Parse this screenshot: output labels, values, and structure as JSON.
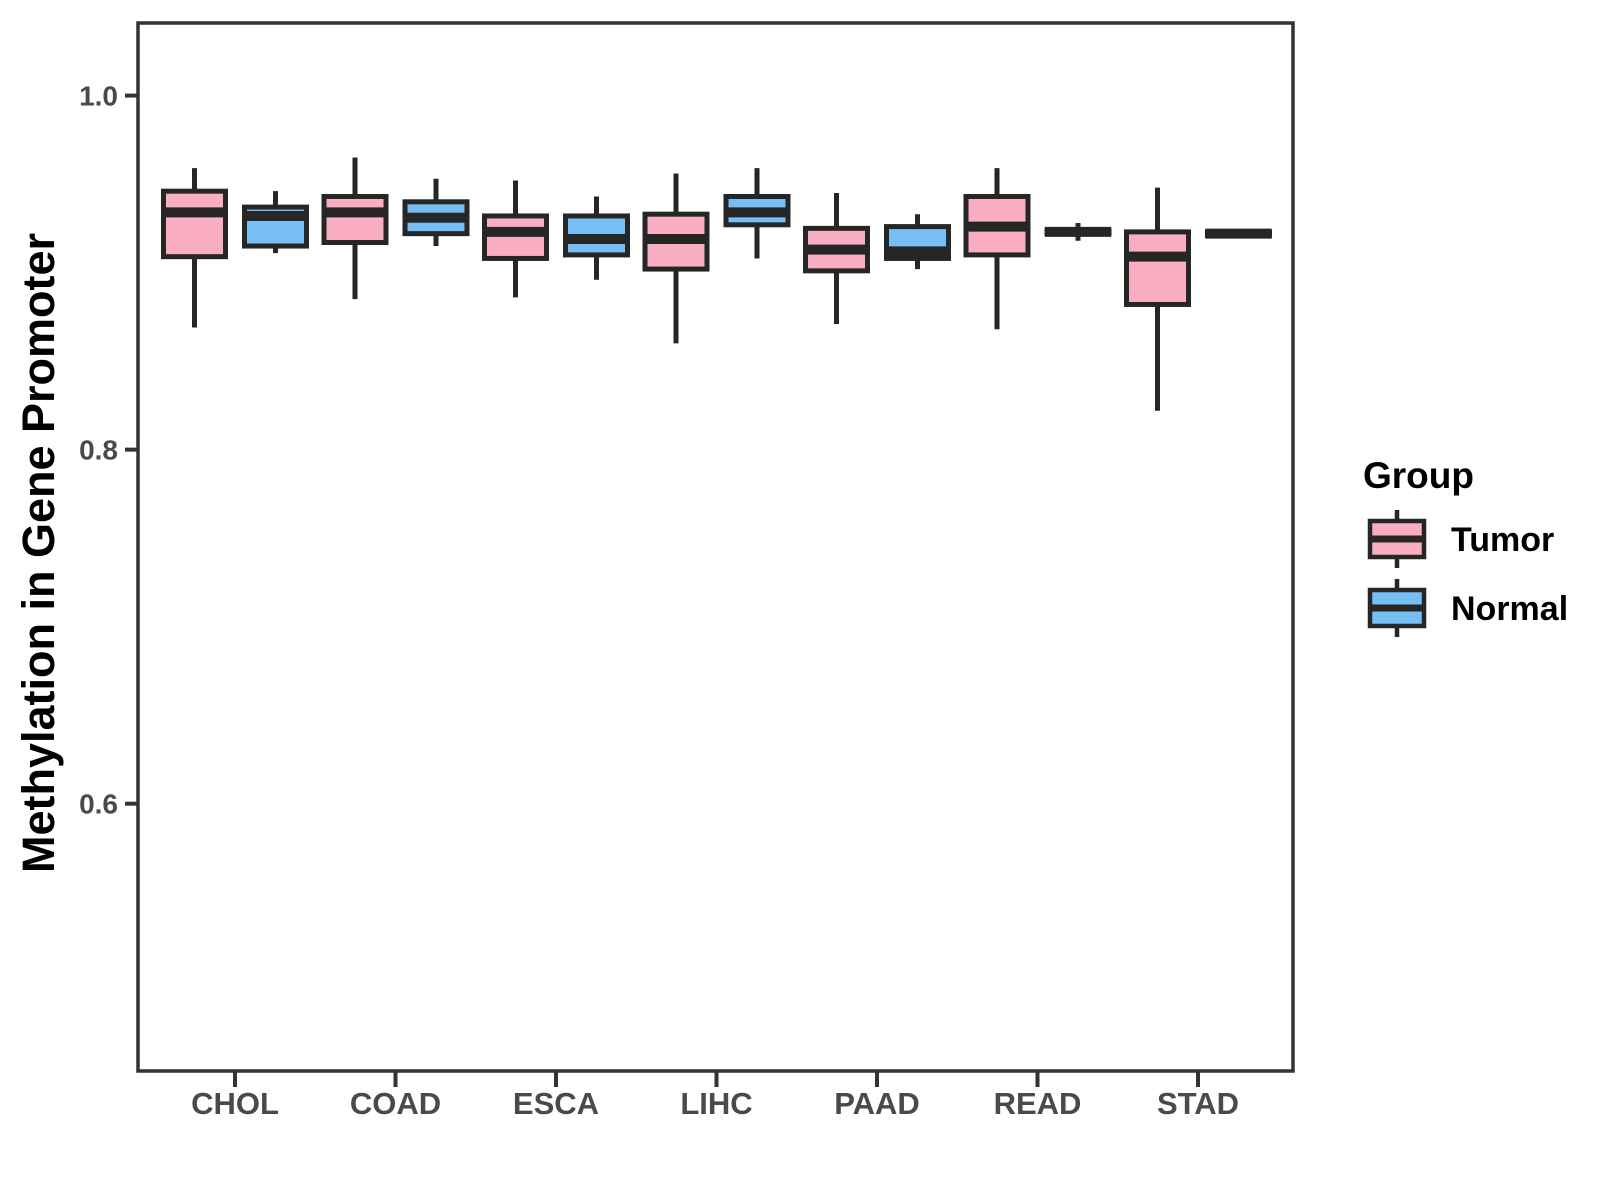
{
  "chart_data": {
    "type": "boxplot",
    "title": "",
    "categories": [
      "CHOL",
      "COAD",
      "ESCA",
      "LIHC",
      "PAAD",
      "READ",
      "STAD"
    ],
    "ylabel": "Methylation in Gene Promoter",
    "xlabel": "",
    "ylim": [
      0.449,
      1.041
    ],
    "yticks": [
      1.0,
      0.8,
      0.6
    ],
    "ytick_labels": [
      "1.0",
      "0.8",
      "0.6"
    ],
    "grid": false,
    "legend_title": "Group",
    "legend_position": "right",
    "colors": {
      "box_outline": "#262626",
      "panel_border": "#333333",
      "tick_text": "#4a4a4a"
    },
    "series": [
      {
        "name": "Tumor",
        "color": "#FAAEC1",
        "boxes": [
          {
            "low": 0.869,
            "q1": 0.909,
            "median": 0.934,
            "q3": 0.946,
            "high": 0.959
          },
          {
            "low": 0.885,
            "q1": 0.917,
            "median": 0.934,
            "q3": 0.943,
            "high": 0.965
          },
          {
            "low": 0.886,
            "q1": 0.908,
            "median": 0.923,
            "q3": 0.932,
            "high": 0.952
          },
          {
            "low": 0.86,
            "q1": 0.902,
            "median": 0.919,
            "q3": 0.933,
            "high": 0.956
          },
          {
            "low": 0.871,
            "q1": 0.901,
            "median": 0.913,
            "q3": 0.925,
            "high": 0.945
          },
          {
            "low": 0.868,
            "q1": 0.91,
            "median": 0.926,
            "q3": 0.943,
            "high": 0.959
          },
          {
            "low": 0.822,
            "q1": 0.882,
            "median": 0.909,
            "q3": 0.923,
            "high": 0.948
          }
        ]
      },
      {
        "name": "Normal",
        "color": "#76BEF3",
        "boxes": [
          {
            "low": 0.911,
            "q1": 0.915,
            "median": 0.932,
            "q3": 0.937,
            "high": 0.946
          },
          {
            "low": 0.915,
            "q1": 0.922,
            "median": 0.931,
            "q3": 0.94,
            "high": 0.953
          },
          {
            "low": 0.896,
            "q1": 0.91,
            "median": 0.919,
            "q3": 0.932,
            "high": 0.943
          },
          {
            "low": 0.908,
            "q1": 0.927,
            "median": 0.934,
            "q3": 0.943,
            "high": 0.959
          },
          {
            "low": 0.902,
            "q1": 0.908,
            "median": 0.912,
            "q3": 0.926,
            "high": 0.933
          },
          {
            "low": 0.918,
            "q1": 0.922,
            "median": 0.923,
            "q3": 0.924,
            "high": 0.928
          },
          {
            "low": 0.921,
            "q1": 0.921,
            "median": 0.922,
            "q3": 0.923,
            "high": 0.923
          }
        ]
      }
    ]
  }
}
